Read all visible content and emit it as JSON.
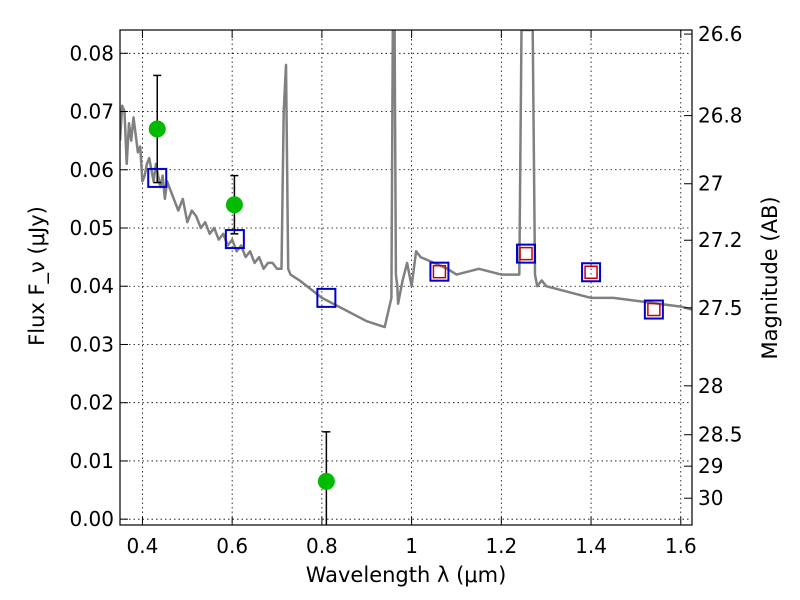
{
  "chart_data": {
    "type": "scatter",
    "xlabel": "Wavelength λ (μm)",
    "ylabel": "Flux F_ν (μJy)",
    "ylabel_right": "Magnitude (AB)",
    "xlim": [
      0.35,
      1.625
    ],
    "ylim": [
      -0.001,
      0.084
    ],
    "grid": true,
    "x_ticks": [
      0.4,
      0.6,
      0.8,
      1.0,
      1.2,
      1.4,
      1.6
    ],
    "x_tick_labels": [
      "0.4",
      "0.6",
      "0.8",
      "1",
      "1.2",
      "1.4",
      "1.6"
    ],
    "y_ticks": [
      0.0,
      0.01,
      0.02,
      0.03,
      0.04,
      0.05,
      0.06,
      0.07,
      0.08
    ],
    "y_tick_labels": [
      "0.00",
      "0.01",
      "0.02",
      "0.03",
      "0.04",
      "0.05",
      "0.06",
      "0.07",
      "0.08"
    ],
    "right_ticks": [
      {
        "label": "26.6",
        "flux": 0.0833
      },
      {
        "label": "26.8",
        "flux": 0.0693
      },
      {
        "label": "27",
        "flux": 0.0576
      },
      {
        "label": "27.2",
        "flux": 0.0479
      },
      {
        "label": "27.5",
        "flux": 0.0363
      },
      {
        "label": "28",
        "flux": 0.0229
      },
      {
        "label": "28.5",
        "flux": 0.0145
      },
      {
        "label": "29",
        "flux": 0.0091
      },
      {
        "label": "30",
        "flux": 0.0036
      }
    ],
    "series": [
      {
        "kind": "line",
        "color": "#808080",
        "x": [
          0.35,
          0.355,
          0.36,
          0.365,
          0.37,
          0.375,
          0.38,
          0.385,
          0.39,
          0.395,
          0.4,
          0.405,
          0.41,
          0.415,
          0.42,
          0.425,
          0.43,
          0.435,
          0.44,
          0.445,
          0.45,
          0.455,
          0.46,
          0.47,
          0.48,
          0.49,
          0.5,
          0.51,
          0.52,
          0.53,
          0.54,
          0.55,
          0.56,
          0.57,
          0.58,
          0.59,
          0.6,
          0.61,
          0.62,
          0.63,
          0.64,
          0.65,
          0.66,
          0.67,
          0.68,
          0.69,
          0.7,
          0.71,
          0.715,
          0.72,
          0.725,
          0.73,
          0.75,
          0.8,
          0.85,
          0.9,
          0.94,
          0.955,
          0.958,
          0.962,
          0.965,
          0.968,
          0.97,
          0.98,
          0.99,
          1.0,
          1.01,
          1.02,
          1.05,
          1.08,
          1.1,
          1.15,
          1.2,
          1.24,
          1.245,
          1.25,
          1.27,
          1.275,
          1.28,
          1.29,
          1.3,
          1.35,
          1.4,
          1.45,
          1.5,
          1.55,
          1.6,
          1.625
        ],
        "y": [
          0.065,
          0.071,
          0.07,
          0.061,
          0.068,
          0.065,
          0.069,
          0.066,
          0.063,
          0.064,
          0.058,
          0.059,
          0.061,
          0.062,
          0.06,
          0.058,
          0.061,
          0.059,
          0.057,
          0.059,
          0.055,
          0.058,
          0.057,
          0.055,
          0.053,
          0.055,
          0.051,
          0.053,
          0.052,
          0.05,
          0.051,
          0.049,
          0.05,
          0.048,
          0.049,
          0.047,
          0.048,
          0.046,
          0.047,
          0.045,
          0.046,
          0.044,
          0.045,
          0.043,
          0.044,
          0.044,
          0.043,
          0.043,
          0.07,
          0.078,
          0.043,
          0.042,
          0.041,
          0.038,
          0.036,
          0.034,
          0.033,
          0.038,
          0.084,
          0.084,
          0.042,
          0.04,
          0.037,
          0.041,
          0.044,
          0.04,
          0.046,
          0.045,
          0.044,
          0.043,
          0.042,
          0.043,
          0.042,
          0.042,
          0.084,
          0.084,
          0.084,
          0.042,
          0.04,
          0.041,
          0.04,
          0.039,
          0.038,
          0.038,
          0.0375,
          0.037,
          0.0365,
          0.036
        ]
      },
      {
        "kind": "points_with_errors",
        "color": "#00bb00",
        "x": [
          0.433,
          0.605,
          0.81
        ],
        "y": [
          0.067,
          0.054,
          0.0065
        ],
        "yerr": [
          0.0092,
          0.005,
          0.0085
        ]
      },
      {
        "kind": "open_squares",
        "color": "#0000cc",
        "x": [
          0.433,
          0.606,
          0.81,
          1.062,
          1.255,
          1.4,
          1.54
        ],
        "y": [
          0.0586,
          0.0481,
          0.038,
          0.0425,
          0.0456,
          0.0424,
          0.036
        ]
      },
      {
        "kind": "open_squares",
        "color": "#cc0000",
        "x": [
          1.062,
          1.255,
          1.4,
          1.54
        ],
        "y": [
          0.0425,
          0.0456,
          0.0424,
          0.036
        ]
      }
    ]
  }
}
